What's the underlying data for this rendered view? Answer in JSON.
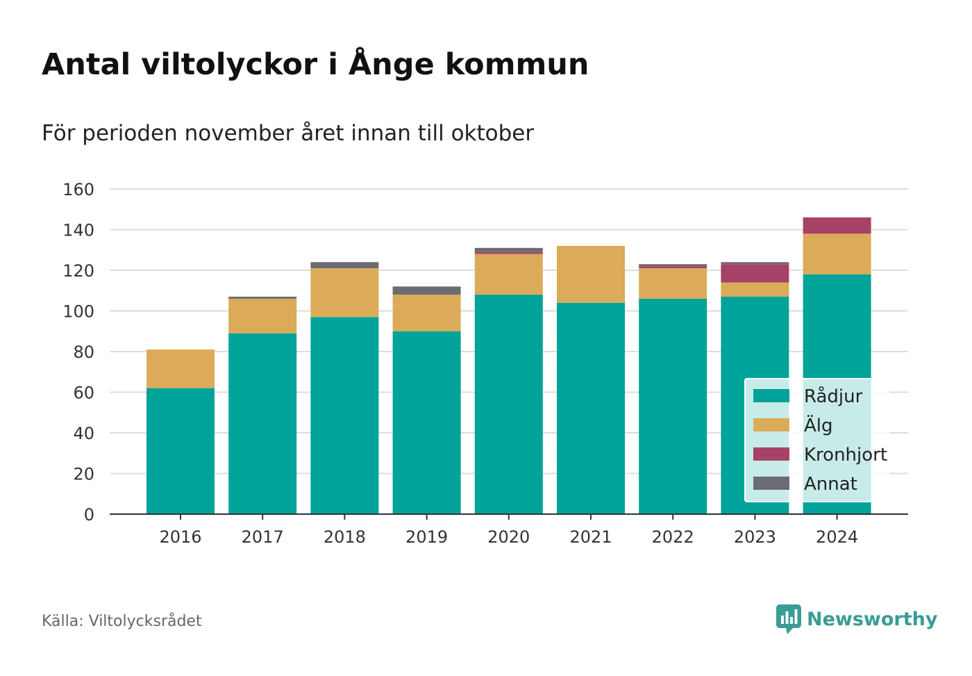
{
  "title": "Antal viltolyckor i Ånge kommun",
  "subtitle": "För perioden november året innan till oktober",
  "source": "Källa: Viltolycksrådet",
  "brand": {
    "name": "Newsworthy",
    "icon": "newsworthy-logo-icon",
    "color": "#3a9c96"
  },
  "chart_data": {
    "type": "bar",
    "stacked": true,
    "categories": [
      "2016",
      "2017",
      "2018",
      "2019",
      "2020",
      "2021",
      "2022",
      "2023",
      "2024"
    ],
    "series": [
      {
        "name": "Rådjur",
        "color": "#00a39a",
        "values": [
          62,
          89,
          97,
          90,
          108,
          104,
          106,
          107,
          118
        ]
      },
      {
        "name": "Älg",
        "color": "#dbab59",
        "values": [
          19,
          17,
          24,
          18,
          20,
          28,
          15,
          7,
          20
        ]
      },
      {
        "name": "Kronhjort",
        "color": "#a64267",
        "values": [
          0,
          0,
          0,
          0,
          1,
          0,
          1,
          9,
          8
        ]
      },
      {
        "name": "Annat",
        "color": "#6b6b72",
        "values": [
          0,
          1,
          3,
          4,
          2,
          0,
          1,
          1,
          0
        ]
      }
    ],
    "yticks": [
      "0",
      "20",
      "40",
      "60",
      "80",
      "100",
      "120",
      "140",
      "160"
    ],
    "ylim": [
      0,
      160
    ],
    "grid": true,
    "legend_position": "bottom-right"
  }
}
